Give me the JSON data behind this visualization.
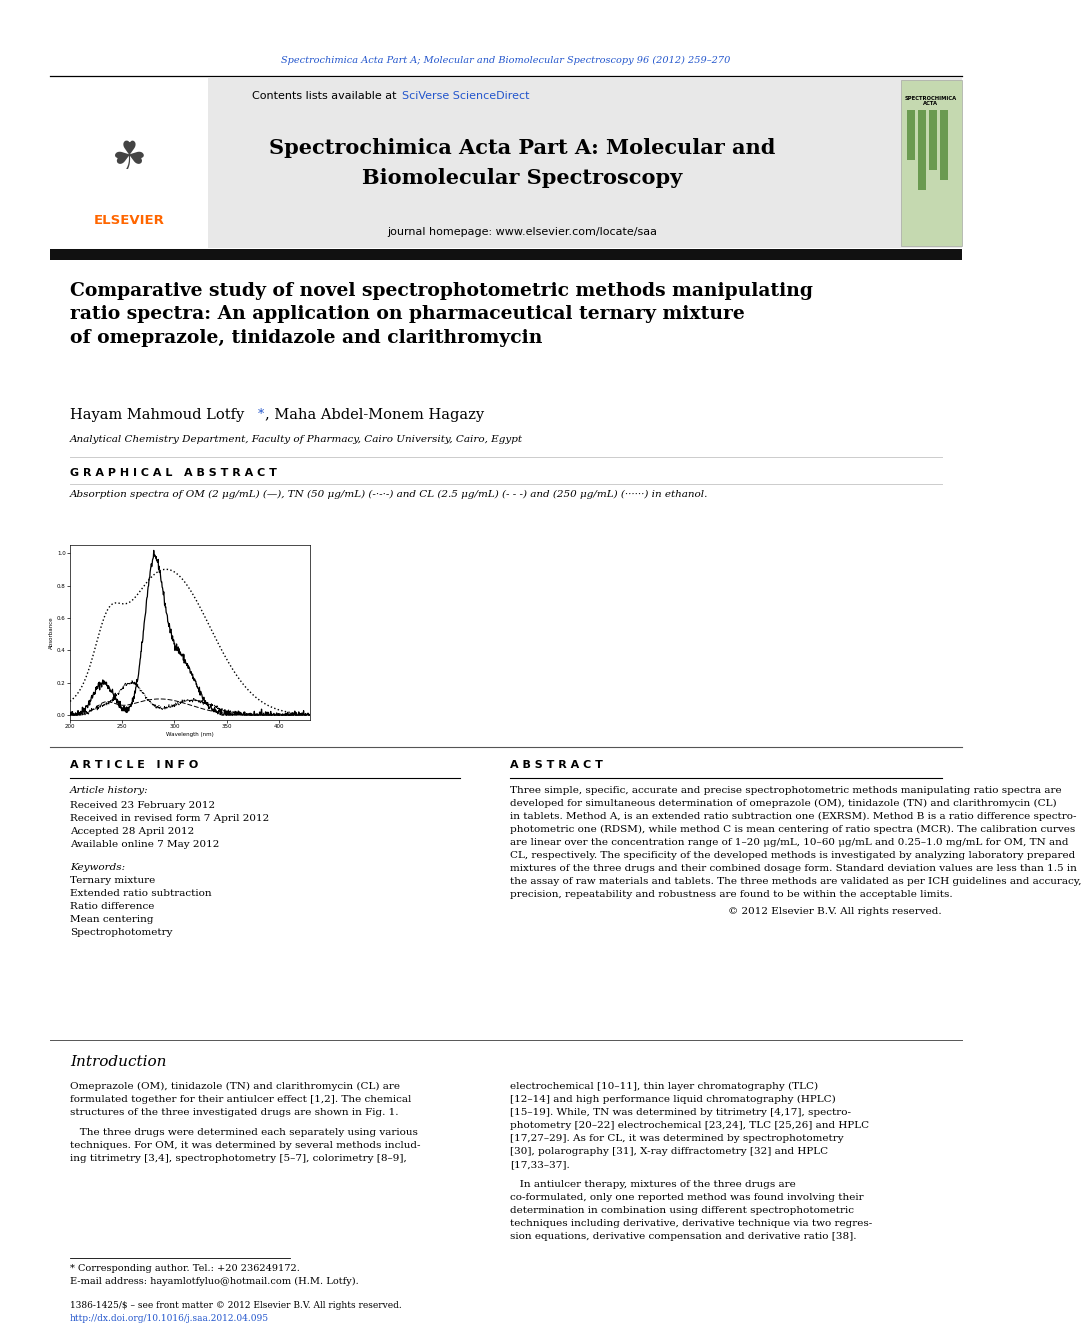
{
  "page_width": 9.92,
  "page_height": 13.23,
  "bg_color": "#ffffff",
  "top_citation": "Spectrochimica Acta Part A; Molecular and Biomolecular Spectroscopy 96 (2012) 259–270",
  "top_citation_color": "#2255cc",
  "journal_name_line1": "Spectrochimica Acta Part A: Molecular and",
  "journal_name_line2": "Biomolecular Spectroscopy",
  "journal_homepage": "journal homepage: www.elsevier.com/locate/saa",
  "contents_text": "Contents lists available at ",
  "sciverse_text": "SciVerse ScienceDirect",
  "sciverse_color": "#2255cc",
  "elsevier_color": "#ff6600",
  "header_bg": "#e8e8e8",
  "thick_bar_color": "#111111",
  "article_title": "Comparative study of novel spectrophotometric methods manipulating\nratio spectra: An application on pharmaceutical ternary mixture\nof omeprazole, tinidazole and clarithromycin",
  "authors_part1": "Hayam Mahmoud Lotfy ",
  "authors_asterisk": "*",
  "authors_part2": ", Maha Abdel-Monem Hagazy",
  "affiliation": "Analytical Chemistry Department, Faculty of Pharmacy, Cairo University, Cairo, Egypt",
  "graphical_abstract_label": "G R A P H I C A L   A B S T R A C T",
  "graphical_abstract_caption": "Absorption spectra of OM (2 μg/mL) (—), TN (50 μg/mL) (-·-·-) and CL (2.5 μg/mL) (- - -) and (250 μg/mL) (······) in ethanol.",
  "article_info_label": "A R T I C L E   I N F O",
  "abstract_label": "A B S T R A C T",
  "article_history_label": "Article history:",
  "received_1": "Received 23 February 2012",
  "received_2": "Received in revised form 7 April 2012",
  "accepted": "Accepted 28 April 2012",
  "online": "Available online 7 May 2012",
  "keywords_label": "Keywords:",
  "keywords": [
    "Ternary mixture",
    "Extended ratio subtraction",
    "Ratio difference",
    "Mean centering",
    "Spectrophotometry"
  ],
  "abstract_lines": [
    "Three simple, specific, accurate and precise spectrophotometric methods manipulating ratio spectra are",
    "developed for simultaneous determination of omeprazole (OM), tinidazole (TN) and clarithromycin (CL)",
    "in tablets. Method A, is an extended ratio subtraction one (EXRSM). Method B is a ratio difference spectro-",
    "photometric one (RDSM), while method C is mean centering of ratio spectra (MCR). The calibration curves",
    "are linear over the concentration range of 1–20 μg/mL, 10–60 μg/mL and 0.25–1.0 mg/mL for OM, TN and",
    "CL, respectively. The specificity of the developed methods is investigated by analyzing laboratory prepared",
    "mixtures of the three drugs and their combined dosage form. Standard deviation values are less than 1.5 in",
    "the assay of raw materials and tablets. The three methods are validated as per ICH guidelines and accuracy,",
    "precision, repeatability and robustness are found to be within the acceptable limits."
  ],
  "copyright": "© 2012 Elsevier B.V. All rights reserved.",
  "intro_heading": "Introduction",
  "intro_col1_lines": [
    "Omeprazole (OM), tinidazole (TN) and clarithromycin (CL) are",
    "formulated together for their antiulcer effect [1,2]. The chemical",
    "structures of the three investigated drugs are shown in Fig. 1.",
    "",
    "   The three drugs were determined each separately using various",
    "techniques. For OM, it was determined by several methods includ-",
    "ing titrimetry [3,4], spectrophotometry [5–7], colorimetry [8–9],"
  ],
  "intro_col2_lines": [
    "electrochemical [10–11], thin layer chromatography (TLC)",
    "[12–14] and high performance liquid chromatography (HPLC)",
    "[15–19]. While, TN was determined by titrimetry [4,17], spectro-",
    "photometry [20–22] electrochemical [23,24], TLC [25,26] and HPLC",
    "[17,27–29]. As for CL, it was determined by spectrophotometry",
    "[30], polarography [31], X-ray diffractometry [32] and HPLC",
    "[17,33–37].",
    "",
    "   In antiulcer therapy, mixtures of the three drugs are",
    "co-formulated, only one reported method was found involving their",
    "determination in combination using different spectrophotometric",
    "techniques including derivative, derivative technique via two regres-",
    "sion equations, derivative compensation and derivative ratio [38]."
  ],
  "footnote_1": "* Corresponding author. Tel.: +20 236249172.",
  "footnote_2": "E-mail address: hayamlotfyluo@hotmail.com (H.M. Lotfy).",
  "footer_1": "1386-1425/$ – see front matter © 2012 Elsevier B.V. All rights reserved.",
  "footer_2": "http://dx.doi.org/10.1016/j.saa.2012.04.095",
  "footer_doi_color": "#2255cc"
}
